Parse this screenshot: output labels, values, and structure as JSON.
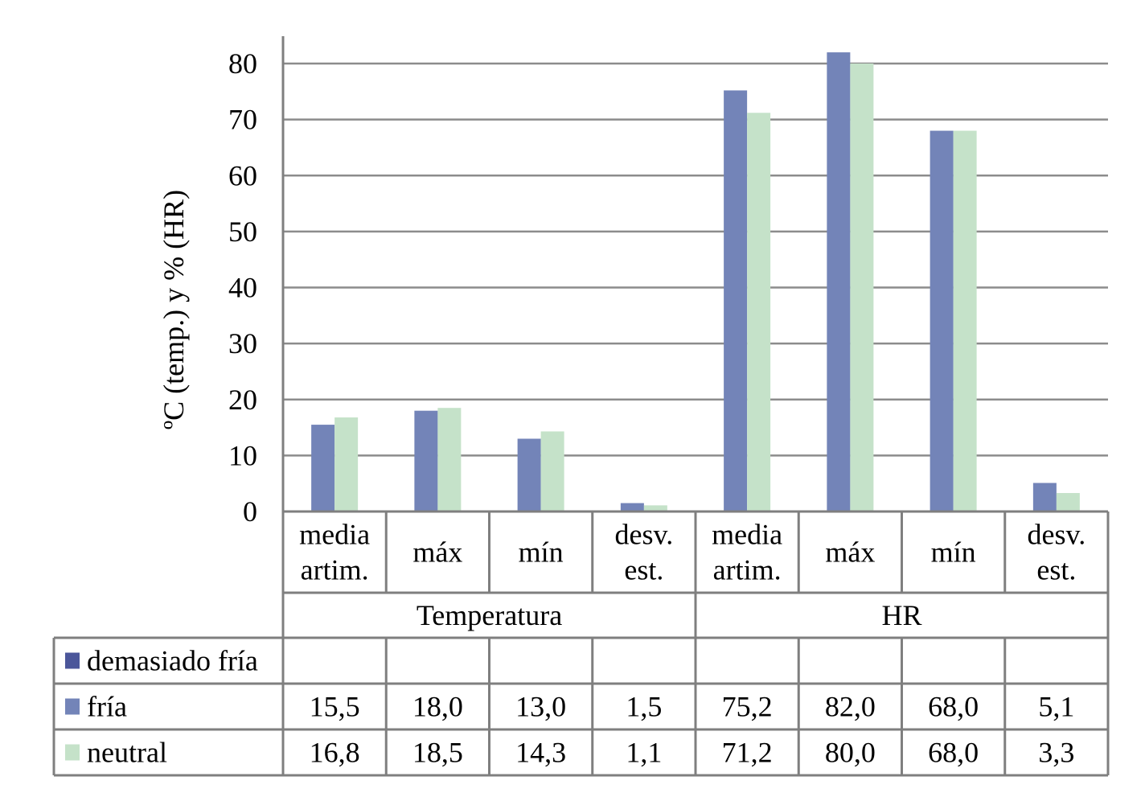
{
  "chart_data": {
    "type": "bar",
    "ylabel": "ºC (temp.) y % (HR)",
    "ylim": [
      0,
      80
    ],
    "yticks": [
      0,
      10,
      20,
      30,
      40,
      50,
      60,
      70,
      80
    ],
    "grid": true,
    "groups": [
      {
        "name": "Temperatura",
        "categories": [
          "media artim.",
          "máx",
          "mín",
          "desv. est."
        ]
      },
      {
        "name": "HR",
        "categories": [
          "media artim.",
          "máx",
          "mín",
          "desv. est."
        ]
      }
    ],
    "categories": [
      [
        "media",
        "artim."
      ],
      [
        "máx"
      ],
      [
        "mín"
      ],
      [
        "desv.",
        "est."
      ],
      [
        "media",
        "artim."
      ],
      [
        "máx"
      ],
      [
        "mín"
      ],
      [
        "desv.",
        "est."
      ]
    ],
    "series": [
      {
        "name": "demasiado fría",
        "color": "#4b569a",
        "values": [
          null,
          null,
          null,
          null,
          null,
          null,
          null,
          null
        ],
        "labels": [
          "",
          "",
          "",
          "",
          "",
          "",
          "",
          ""
        ]
      },
      {
        "name": "fría",
        "color": "#7384b8",
        "values": [
          15.5,
          18.0,
          13.0,
          1.5,
          75.2,
          82.0,
          68.0,
          5.1
        ],
        "labels": [
          "15,5",
          "18,0",
          "13,0",
          "1,5",
          "75,2",
          "82,0",
          "68,0",
          "5,1"
        ]
      },
      {
        "name": "neutral",
        "color": "#c5e2c9",
        "values": [
          16.8,
          18.5,
          14.3,
          1.1,
          71.2,
          80.0,
          68.0,
          3.3
        ],
        "labels": [
          "16,8",
          "18,5",
          "14,3",
          "1,1",
          "71,2",
          "80,0",
          "68,0",
          "3,3"
        ]
      }
    ],
    "legend": "data table below chart"
  }
}
